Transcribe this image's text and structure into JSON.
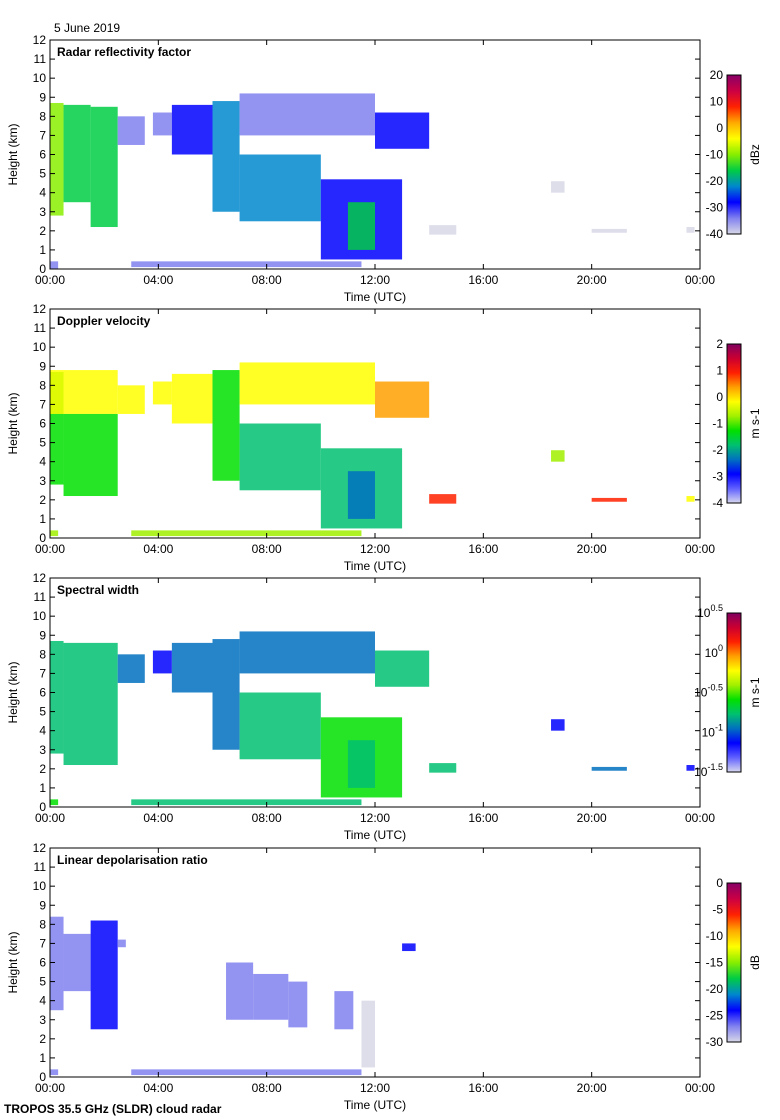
{
  "date_label": "5 June 2019",
  "footer_label": "TROPOS 35.5 GHz (SLDR) cloud radar",
  "chart_data": [
    {
      "type": "heatmap",
      "title": "Radar reflectivity factor",
      "xlabel": "Time (UTC)",
      "ylabel": "Height (km)",
      "xlim": [
        0,
        24
      ],
      "ylim": [
        0,
        12
      ],
      "xticks": [
        "00:00",
        "04:00",
        "08:00",
        "12:00",
        "16:00",
        "20:00",
        "00:00"
      ],
      "yticks": [
        "0",
        "1",
        "2",
        "3",
        "4",
        "5",
        "6",
        "7",
        "8",
        "9",
        "10",
        "11",
        "12"
      ],
      "colorbar": {
        "label": "dBz",
        "range": [
          -40,
          20
        ],
        "ticks": [
          "20",
          "10",
          "0",
          "-10",
          "-20",
          "-30",
          "-40"
        ],
        "colormap": "reflectivity"
      },
      "regions": [
        [
          0.0,
          0.5,
          2.8,
          8.7,
          -12
        ],
        [
          0.5,
          1.5,
          3.5,
          8.6,
          -18
        ],
        [
          1.5,
          2.5,
          2.2,
          8.5,
          -15
        ],
        [
          2.5,
          3.5,
          6.5,
          8.0,
          -32
        ],
        [
          3.8,
          4.5,
          7.0,
          8.2,
          -33
        ],
        [
          4.5,
          6.0,
          6.0,
          8.6,
          -30
        ],
        [
          6.0,
          7.0,
          3.0,
          8.8,
          -24
        ],
        [
          7.0,
          10.0,
          2.5,
          6.0,
          -20
        ],
        [
          7.0,
          12.0,
          7.0,
          9.2,
          -32
        ],
        [
          12.0,
          14.0,
          6.3,
          8.2,
          -30
        ],
        [
          10.0,
          13.0,
          0.5,
          4.7,
          -26
        ],
        [
          11.0,
          12.0,
          1.0,
          3.5,
          -18
        ],
        [
          0.0,
          0.3,
          0.0,
          0.4,
          -36
        ],
        [
          3.0,
          11.5,
          0.1,
          0.4,
          -34
        ],
        [
          14.0,
          15.0,
          1.8,
          2.3,
          -38
        ],
        [
          18.5,
          19.0,
          4.0,
          4.6,
          -38
        ],
        [
          20.0,
          21.3,
          1.9,
          2.1,
          -38
        ],
        [
          23.5,
          23.8,
          1.9,
          2.2,
          -38
        ]
      ]
    },
    {
      "type": "heatmap",
      "title": "Doppler velocity",
      "xlabel": "Time (UTC)",
      "ylabel": "Height (km)",
      "xlim": [
        0,
        24
      ],
      "ylim": [
        0,
        12
      ],
      "xticks": [
        "00:00",
        "04:00",
        "08:00",
        "12:00",
        "16:00",
        "20:00",
        "00:00"
      ],
      "yticks": [
        "0",
        "1",
        "2",
        "3",
        "4",
        "5",
        "6",
        "7",
        "8",
        "9",
        "10",
        "11",
        "12"
      ],
      "colorbar": {
        "label": "m s-1",
        "range": [
          -4,
          2
        ],
        "ticks": [
          "2",
          "1",
          "0",
          "-1",
          "-2",
          "-3",
          "-4"
        ],
        "colormap": "rainbow"
      },
      "regions": [
        [
          0.0,
          0.5,
          2.8,
          8.7,
          -1.3
        ],
        [
          0.0,
          2.5,
          6.5,
          8.8,
          -0.3
        ],
        [
          0.5,
          2.5,
          2.2,
          6.5,
          -1.5
        ],
        [
          2.5,
          3.5,
          6.5,
          8.0,
          -0.4
        ],
        [
          3.8,
          4.5,
          7.0,
          8.2,
          -0.3
        ],
        [
          4.5,
          6.0,
          6.0,
          8.6,
          -0.4
        ],
        [
          6.0,
          7.0,
          3.0,
          8.8,
          -1.2
        ],
        [
          7.0,
          10.0,
          2.5,
          6.0,
          -1.6
        ],
        [
          7.0,
          12.0,
          7.0,
          9.2,
          -0.3
        ],
        [
          12.0,
          14.0,
          6.3,
          8.2,
          0.2
        ],
        [
          10.0,
          13.0,
          0.5,
          4.7,
          -1.8
        ],
        [
          11.0,
          12.0,
          1.0,
          3.5,
          -2.6
        ],
        [
          0.0,
          0.3,
          0.1,
          0.4,
          -0.5
        ],
        [
          3.0,
          11.5,
          0.1,
          0.4,
          -0.6
        ],
        [
          14.0,
          15.0,
          1.8,
          2.3,
          0.8
        ],
        [
          18.5,
          19.0,
          4.0,
          4.6,
          -0.5
        ],
        [
          20.0,
          21.3,
          1.9,
          2.1,
          0.7
        ],
        [
          23.5,
          23.8,
          1.9,
          2.2,
          -0.3
        ]
      ]
    },
    {
      "type": "heatmap",
      "title": "Spectral width",
      "xlabel": "Time (UTC)",
      "ylabel": "Height (km)",
      "xlim": [
        0,
        24
      ],
      "ylim": [
        0,
        12
      ],
      "xticks": [
        "00:00",
        "04:00",
        "08:00",
        "12:00",
        "16:00",
        "20:00",
        "00:00"
      ],
      "yticks": [
        "0",
        "1",
        "2",
        "3",
        "4",
        "5",
        "6",
        "7",
        "8",
        "9",
        "10",
        "11",
        "12"
      ],
      "colorbar": {
        "label": "m s-1",
        "range": [
          -1.5,
          0.5
        ],
        "scale": "log10",
        "ticks": [
          {
            "base": "10",
            "exp": "0.5"
          },
          {
            "base": "10",
            "exp": "0"
          },
          {
            "base": "10",
            "exp": "-0.5"
          },
          {
            "base": "10",
            "exp": "-1"
          },
          {
            "base": "10",
            "exp": "-1.5"
          }
        ],
        "colormap": "rainbow"
      },
      "regions": [
        [
          0.0,
          0.5,
          2.8,
          8.7,
          -0.7
        ],
        [
          0.5,
          2.5,
          2.2,
          8.6,
          -0.85
        ],
        [
          2.5,
          3.5,
          6.5,
          8.0,
          -1.0
        ],
        [
          3.8,
          4.5,
          7.0,
          8.2,
          -1.05
        ],
        [
          4.5,
          6.0,
          6.0,
          8.6,
          -1.0
        ],
        [
          6.0,
          7.0,
          3.0,
          8.8,
          -0.9
        ],
        [
          7.0,
          10.0,
          2.5,
          6.0,
          -0.8
        ],
        [
          7.0,
          12.0,
          7.0,
          9.2,
          -0.95
        ],
        [
          12.0,
          14.0,
          6.3,
          8.2,
          -0.85
        ],
        [
          10.0,
          13.0,
          0.5,
          4.7,
          -0.6
        ],
        [
          11.0,
          12.0,
          1.0,
          3.5,
          -0.7
        ],
        [
          0.0,
          0.3,
          0.1,
          0.4,
          -0.6
        ],
        [
          3.0,
          11.5,
          0.1,
          0.4,
          -0.7
        ],
        [
          14.0,
          15.0,
          1.8,
          2.3,
          -0.7
        ],
        [
          18.5,
          19.0,
          4.0,
          4.6,
          -1.1
        ],
        [
          20.0,
          21.3,
          1.9,
          2.1,
          -0.9
        ],
        [
          23.5,
          23.8,
          1.9,
          2.2,
          -1.1
        ]
      ]
    },
    {
      "type": "heatmap",
      "title": "Linear depolarisation ratio",
      "xlabel": "Time (UTC)",
      "ylabel": "Height (km)",
      "xlim": [
        0,
        24
      ],
      "ylim": [
        0,
        12
      ],
      "xticks": [
        "00:00",
        "04:00",
        "08:00",
        "12:00",
        "16:00",
        "20:00",
        "00:00"
      ],
      "yticks": [
        "0",
        "1",
        "2",
        "3",
        "4",
        "5",
        "6",
        "7",
        "8",
        "9",
        "10",
        "11",
        "12"
      ],
      "colorbar": {
        "label": "dB",
        "range": [
          -30,
          0
        ],
        "ticks": [
          "0",
          "-5",
          "-10",
          "-15",
          "-20",
          "-25",
          "-30"
        ],
        "colormap": "reflectivity"
      },
      "regions": [
        [
          0.0,
          0.5,
          3.5,
          8.4,
          -26
        ],
        [
          0.5,
          1.5,
          4.5,
          7.5,
          -27
        ],
        [
          1.5,
          2.5,
          2.5,
          8.2,
          -25
        ],
        [
          2.5,
          2.8,
          6.8,
          7.2,
          -27
        ],
        [
          6.5,
          7.5,
          3.0,
          6.0,
          -26
        ],
        [
          7.5,
          8.8,
          3.0,
          5.4,
          -27
        ],
        [
          8.8,
          9.5,
          2.6,
          5.0,
          -26
        ],
        [
          10.5,
          11.2,
          2.5,
          4.5,
          -27
        ],
        [
          11.5,
          12.0,
          0.5,
          4.0,
          -29
        ],
        [
          13.0,
          13.5,
          6.6,
          7.0,
          -25
        ],
        [
          0.0,
          0.3,
          0.1,
          0.4,
          -27
        ],
        [
          3.0,
          11.5,
          0.1,
          0.4,
          -28
        ]
      ]
    }
  ]
}
